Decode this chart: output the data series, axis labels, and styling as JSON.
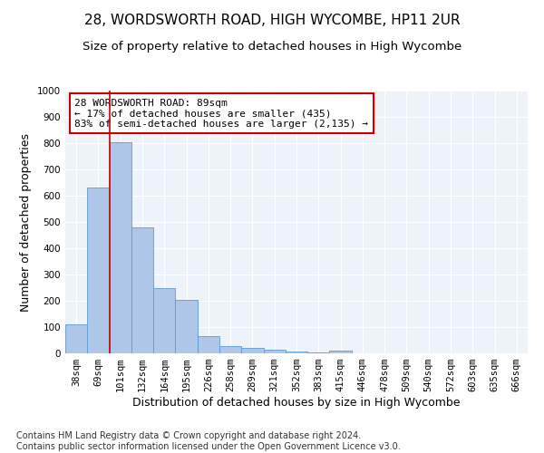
{
  "title_line1": "28, WORDSWORTH ROAD, HIGH WYCOMBE, HP11 2UR",
  "title_line2": "Size of property relative to detached houses in High Wycombe",
  "xlabel": "Distribution of detached houses by size in High Wycombe",
  "ylabel": "Number of detached properties",
  "footnote": "Contains HM Land Registry data © Crown copyright and database right 2024.\nContains public sector information licensed under the Open Government Licence v3.0.",
  "categories": [
    "38sqm",
    "69sqm",
    "101sqm",
    "132sqm",
    "164sqm",
    "195sqm",
    "226sqm",
    "258sqm",
    "289sqm",
    "321sqm",
    "352sqm",
    "383sqm",
    "415sqm",
    "446sqm",
    "478sqm",
    "509sqm",
    "540sqm",
    "572sqm",
    "603sqm",
    "635sqm",
    "666sqm"
  ],
  "values": [
    110,
    630,
    805,
    480,
    250,
    205,
    65,
    28,
    22,
    13,
    8,
    5,
    10,
    0,
    0,
    0,
    0,
    0,
    0,
    0,
    0
  ],
  "bar_color": "#aec6e8",
  "bar_edge_color": "#5b9bd5",
  "red_line_x": 1.5,
  "annotation_text": "28 WORDSWORTH ROAD: 89sqm\n← 17% of detached houses are smaller (435)\n83% of semi-detached houses are larger (2,135) →",
  "annotation_box_color": "#ffffff",
  "annotation_box_edge_color": "#cc0000",
  "ylim": [
    0,
    1000
  ],
  "yticks": [
    0,
    100,
    200,
    300,
    400,
    500,
    600,
    700,
    800,
    900,
    1000
  ],
  "background_color": "#eef2f9",
  "title1_fontsize": 11,
  "title2_fontsize": 9.5,
  "axis_label_fontsize": 9,
  "tick_fontsize": 7.5,
  "annotation_fontsize": 8
}
